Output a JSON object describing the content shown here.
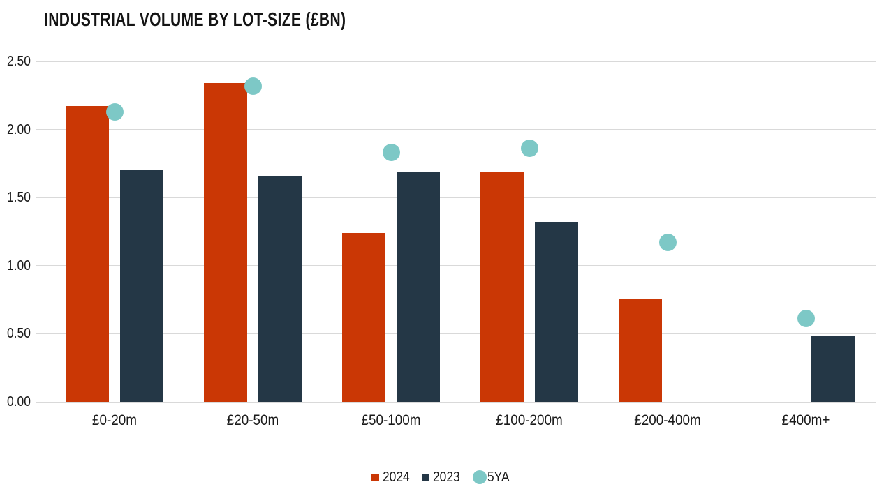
{
  "page": {
    "background": "#ffffff",
    "text_color": "#1a1a1a"
  },
  "chart_data": {
    "type": "bar",
    "title": "INDUSTRIAL VOLUME BY LOT-SIZE (£BN)",
    "categories": [
      "£0-20m",
      "£20-50m",
      "£50-100m",
      "£100-200m",
      "£200-400m",
      "£400m+"
    ],
    "series": [
      {
        "name": "2024",
        "type": "bar",
        "color": "#ca3705",
        "values": [
          2.17,
          2.34,
          1.24,
          1.69,
          0.76,
          null
        ]
      },
      {
        "name": "2023",
        "type": "bar",
        "color": "#243746",
        "values": [
          1.7,
          1.66,
          1.69,
          1.32,
          null,
          0.48
        ]
      },
      {
        "name": "5YA",
        "type": "scatter",
        "color": "#7dc8c6",
        "values": [
          2.13,
          2.32,
          1.83,
          1.86,
          1.17,
          0.61
        ]
      }
    ],
    "xlabel": "",
    "ylabel": "",
    "ylim": [
      0,
      2.5
    ],
    "y_ticks": [
      "2.50",
      "2.00",
      "1.50",
      "1.00",
      "0.50",
      "0.00"
    ],
    "grid": true,
    "gridline_color": "#d9d9d9",
    "legend_position": "bottom-center"
  }
}
